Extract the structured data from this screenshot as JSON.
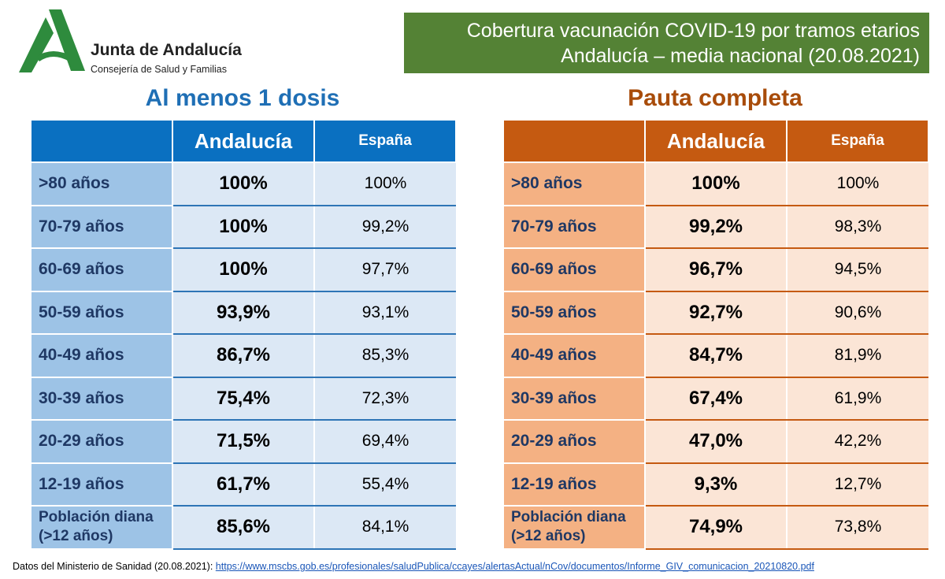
{
  "logo": {
    "title": "Junta de Andalucía",
    "subtitle": "Consejería de Salud y Familias",
    "icon": "andalucia-a-logo-icon",
    "color": "#2e8b3d"
  },
  "header": {
    "line1": "Cobertura vacunación COVID-19 por tramos etarios",
    "line2": "Andalucía – media nacional (20.08.2021)",
    "color": "#548235"
  },
  "left": {
    "title": "Al menos 1 dosis",
    "columns": [
      "",
      "Andalucía",
      "España"
    ],
    "rows": [
      {
        "age": ">80 años",
        "andalucia": "100%",
        "espana": "100%"
      },
      {
        "age": "70-79 años",
        "andalucia": "100%",
        "espana": "99,2%"
      },
      {
        "age": "60-69 años",
        "andalucia": "100%",
        "espana": "97,7%"
      },
      {
        "age": "50-59 años",
        "andalucia": "93,9%",
        "espana": "93,1%"
      },
      {
        "age": "40-49 años",
        "andalucia": "86,7%",
        "espana": "85,3%"
      },
      {
        "age": "30-39 años",
        "andalucia": "75,4%",
        "espana": "72,3%"
      },
      {
        "age": "20-29 años",
        "andalucia": "71,5%",
        "espana": "69,4%"
      },
      {
        "age": "12-19 años",
        "andalucia": "61,7%",
        "espana": "55,4%"
      }
    ],
    "total": {
      "age1": "Población diana",
      "age2": "(>12 años)",
      "andalucia": "85,6%",
      "espana": "84,1%"
    },
    "color": "#0a70c1"
  },
  "right": {
    "title": "Pauta completa",
    "columns": [
      "",
      "Andalucía",
      "España"
    ],
    "rows": [
      {
        "age": ">80 años",
        "andalucia": "100%",
        "espana": "100%"
      },
      {
        "age": "70-79 años",
        "andalucia": "99,2%",
        "espana": "98,3%"
      },
      {
        "age": "60-69 años",
        "andalucia": "96,7%",
        "espana": "94,5%"
      },
      {
        "age": "50-59 años",
        "andalucia": "92,7%",
        "espana": "90,6%"
      },
      {
        "age": "40-49 años",
        "andalucia": "84,7%",
        "espana": "81,9%"
      },
      {
        "age": "30-39 años",
        "andalucia": "67,4%",
        "espana": "61,9%"
      },
      {
        "age": "20-29 años",
        "andalucia": "47,0%",
        "espana": "42,2%"
      },
      {
        "age": "12-19 años",
        "andalucia": "9,3%",
        "espana": "12,7%"
      }
    ],
    "total": {
      "age1": "Población diana",
      "age2": "(>12 años)",
      "andalucia": "74,9%",
      "espana": "73,8%"
    },
    "color": "#c55a11"
  },
  "footer": {
    "label": "Datos del Ministerio de Sanidad (20.08.2021): ",
    "link": "https://www.mscbs.gob.es/profesionales/saludPublica/ccayes/alertasActual/nCov/documentos/Informe_GIV_comunicacion_20210820.pdf"
  }
}
